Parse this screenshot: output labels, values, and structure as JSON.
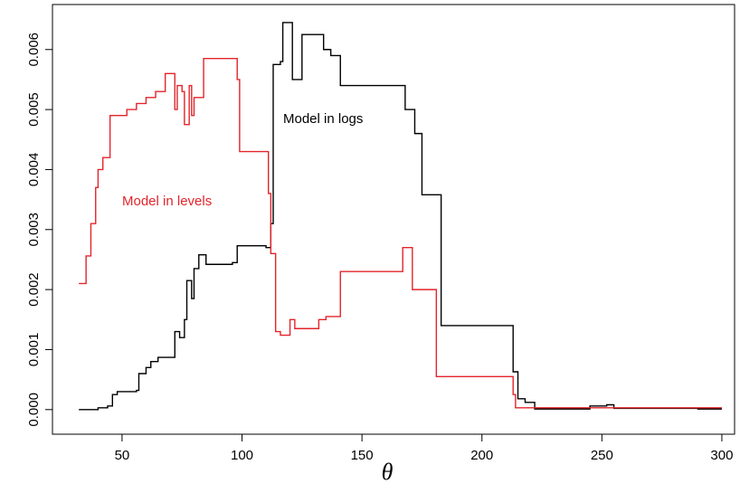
{
  "chart_data": {
    "type": "step",
    "xlabel": "θ",
    "xlim": [
      21,
      305.3
    ],
    "ylim": [
      -0.00041,
      0.00675
    ],
    "xticks": [
      50,
      100,
      150,
      200,
      250,
      300
    ],
    "yticks": [
      {
        "value": 0,
        "label": "0.000"
      },
      {
        "value": 0.001,
        "label": "0.001"
      },
      {
        "value": 0.002,
        "label": "0.002"
      },
      {
        "value": 0.003,
        "label": "0.003"
      },
      {
        "value": 0.004,
        "label": "0.004"
      },
      {
        "value": 0.005,
        "label": "0.005"
      },
      {
        "value": 0.006,
        "label": "0.006"
      }
    ],
    "annotations": [
      "Model in logs",
      "Model in levels"
    ],
    "series": [
      {
        "name": "Model in logs",
        "color": "#000000",
        "x": [
          32,
          40,
          44,
          46,
          48,
          56,
          57,
          60,
          62,
          65,
          69,
          72,
          74,
          76,
          77,
          79,
          80,
          82,
          85,
          96,
          98,
          110,
          112,
          113,
          116,
          117,
          121,
          125,
          134,
          137,
          141,
          168,
          172,
          175,
          183,
          213,
          215,
          218,
          222,
          245,
          252,
          255,
          290,
          300
        ],
        "values": [
          0.0,
          3e-05,
          6e-05,
          0.00025,
          0.0003,
          0.00032,
          0.0006,
          0.0007,
          0.0008,
          0.00087,
          0.00087,
          0.0013,
          0.0012,
          0.0015,
          0.00215,
          0.00185,
          0.00235,
          0.00258,
          0.00242,
          0.00245,
          0.00273,
          0.0027,
          0.0031,
          0.00575,
          0.0058,
          0.00645,
          0.0055,
          0.00625,
          0.006,
          0.0059,
          0.0054,
          0.005,
          0.0046,
          0.00358,
          0.0014,
          0.00063,
          0.00018,
          0.00012,
          1e-05,
          6e-05,
          8e-05,
          2e-05,
          1e-05,
          1e-05
        ]
      },
      {
        "name": "Model in levels",
        "color": "#e3242b",
        "x": [
          32,
          35,
          37,
          39,
          40,
          42,
          45,
          52,
          56,
          60,
          64,
          68,
          72,
          73,
          75,
          76,
          78,
          79,
          80,
          84,
          98,
          99,
          111,
          112,
          114,
          116,
          120,
          122,
          132,
          135,
          141,
          167,
          171,
          181,
          213,
          214,
          300
        ],
        "values": [
          0.0021,
          0.00256,
          0.0031,
          0.0037,
          0.004,
          0.0042,
          0.0049,
          0.005,
          0.0051,
          0.0052,
          0.0053,
          0.0056,
          0.005,
          0.0054,
          0.0053,
          0.00475,
          0.0054,
          0.0049,
          0.0052,
          0.00585,
          0.0055,
          0.0043,
          0.0036,
          0.0026,
          0.0013,
          0.00124,
          0.0015,
          0.00135,
          0.0015,
          0.00155,
          0.0023,
          0.0027,
          0.002,
          0.00055,
          0.00025,
          3e-05,
          3e-05
        ]
      }
    ]
  }
}
